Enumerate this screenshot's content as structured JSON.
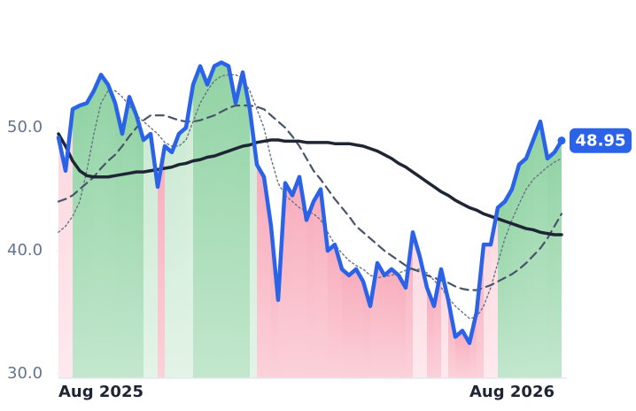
{
  "chart_data": {
    "type": "line",
    "categories": [
      null,
      null,
      null,
      null,
      null,
      null,
      "Aug 2025",
      null,
      null,
      null,
      null,
      null,
      null,
      null,
      null,
      null,
      null,
      null,
      null,
      null,
      null,
      null,
      null,
      null,
      null,
      null,
      null,
      null,
      null,
      null,
      null,
      null,
      null,
      null,
      null,
      null,
      null,
      null,
      null,
      null,
      null,
      null,
      null,
      null,
      null,
      null,
      null,
      null,
      null,
      null,
      null,
      null,
      null,
      null,
      null,
      null,
      null,
      null,
      null,
      null,
      null,
      null,
      null,
      null,
      "Aug 2026",
      null,
      null,
      null,
      null,
      null,
      null,
      null
    ],
    "ylim": [
      30,
      58
    ],
    "yticks": [
      {
        "value": 30,
        "label": "30.0"
      },
      {
        "value": 40,
        "label": "40.0"
      },
      {
        "value": 50,
        "label": "50.0"
      }
    ],
    "series": [
      {
        "color": "#2b63e8",
        "style": "solid",
        "values": [
          49.2,
          46.5,
          51.5,
          51.8,
          52.0,
          53.0,
          54.3,
          53.5,
          52.0,
          49.5,
          52.5,
          51.0,
          49.0,
          49.5,
          45.2,
          48.5,
          48.0,
          49.5,
          50.0,
          53.5,
          55.0,
          53.5,
          55.0,
          55.3,
          55.0,
          52.0,
          54.5,
          51.5,
          47.0,
          46.0,
          42.0,
          36.0,
          45.5,
          44.5,
          46.0,
          42.5,
          44.0,
          45.0,
          40.0,
          40.5,
          38.5,
          38.0,
          38.5,
          37.5,
          35.5,
          39.0,
          38.0,
          38.5,
          38.0,
          37.0,
          41.5,
          39.5,
          37.0,
          35.5,
          38.5,
          36.0,
          33.0,
          33.5,
          32.5,
          35.0,
          40.5,
          40.5,
          43.5,
          44.0,
          45.0,
          47.0,
          47.5,
          49.0,
          50.5,
          47.5,
          48.0,
          48.95
        ]
      },
      {
        "color": "#6b7280",
        "style": "dotted",
        "values": [
          41.5,
          42.0,
          42.8,
          44.0,
          46.5,
          49.5,
          52.0,
          53.0,
          53.0,
          52.5,
          51.8,
          51.0,
          50.5,
          50.0,
          49.5,
          48.8,
          48.5,
          48.5,
          49.0,
          50.5,
          52.0,
          53.0,
          53.8,
          54.2,
          54.3,
          54.3,
          54.0,
          53.0,
          51.5,
          50.0,
          47.5,
          45.5,
          44.5,
          44.0,
          43.5,
          43.2,
          43.0,
          42.5,
          41.5,
          40.5,
          39.8,
          39.2,
          38.8,
          38.5,
          38.0,
          37.8,
          37.9,
          38.0,
          38.2,
          38.4,
          38.5,
          38.5,
          38.2,
          37.6,
          37.0,
          36.2,
          35.5,
          35.0,
          34.5,
          34.6,
          35.5,
          37.0,
          39.0,
          41.0,
          42.5,
          43.8,
          45.0,
          45.8,
          46.3,
          46.8,
          47.2,
          47.5
        ]
      },
      {
        "color": "#475569",
        "style": "dashed",
        "values": [
          44.0,
          44.2,
          44.5,
          45.0,
          45.5,
          46.0,
          46.7,
          47.3,
          47.8,
          48.5,
          49.3,
          50.0,
          50.6,
          51.0,
          51.0,
          51.0,
          50.8,
          50.6,
          50.5,
          50.5,
          50.6,
          50.8,
          51.0,
          51.3,
          51.6,
          51.8,
          51.8,
          51.8,
          51.7,
          51.5,
          51.0,
          50.5,
          50.0,
          49.3,
          48.5,
          47.5,
          46.5,
          45.8,
          45.0,
          44.2,
          43.5,
          42.8,
          42.0,
          41.5,
          41.0,
          40.5,
          40.0,
          39.6,
          39.2,
          38.8,
          38.5,
          38.3,
          38.0,
          37.8,
          37.6,
          37.4,
          37.1,
          36.9,
          36.8,
          36.8,
          37.0,
          37.2,
          37.5,
          37.8,
          38.1,
          38.5,
          39.0,
          39.6,
          40.2,
          41.0,
          42.0,
          43.0
        ]
      },
      {
        "color": "#1e2533",
        "style": "solid",
        "values": [
          49.5,
          48.5,
          47.3,
          46.5,
          46.1,
          46.0,
          46.0,
          46.0,
          46.1,
          46.2,
          46.3,
          46.4,
          46.4,
          46.5,
          46.6,
          46.7,
          46.8,
          47.0,
          47.1,
          47.3,
          47.4,
          47.6,
          47.7,
          47.9,
          48.1,
          48.3,
          48.5,
          48.6,
          48.8,
          48.9,
          49.0,
          49.0,
          48.9,
          48.9,
          48.9,
          48.8,
          48.8,
          48.8,
          48.8,
          48.7,
          48.7,
          48.7,
          48.6,
          48.5,
          48.3,
          48.1,
          47.8,
          47.5,
          47.1,
          46.8,
          46.4,
          46.0,
          45.6,
          45.2,
          44.8,
          44.5,
          44.1,
          43.8,
          43.5,
          43.3,
          43.0,
          42.8,
          42.6,
          42.4,
          42.2,
          42.0,
          41.8,
          41.7,
          41.5,
          41.4,
          41.3,
          41.3
        ]
      }
    ],
    "area_colors": {
      "up": "#6cc485",
      "down": "#f590a6"
    }
  }
}
